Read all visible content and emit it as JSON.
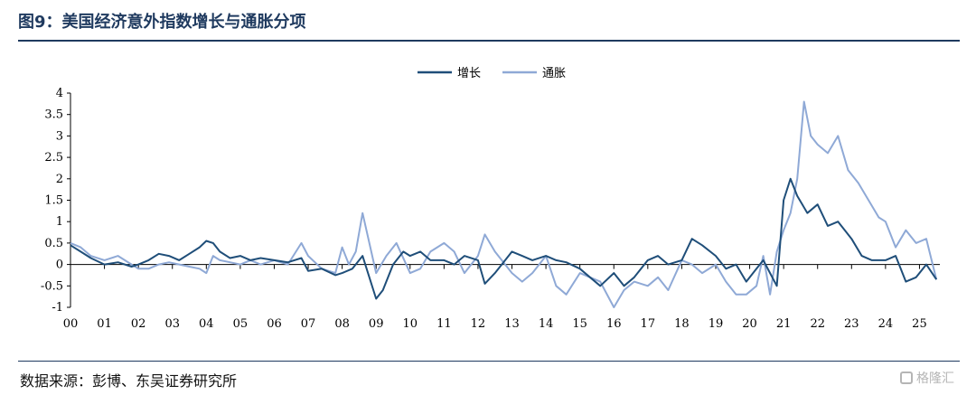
{
  "title": "图9：美国经济意外指数增长与通胀分项",
  "source": "数据来源：彭博、东吴证券研究所",
  "watermark": "格隆汇",
  "chart_data": {
    "type": "line",
    "xlabel": "",
    "ylabel": "",
    "ylim": [
      -1,
      4
    ],
    "yticks": [
      -1,
      -0.5,
      0,
      0.5,
      1,
      1.5,
      2,
      2.5,
      3,
      3.5,
      4
    ],
    "ytick_labels": [
      "-1",
      "-0.5",
      "0",
      "0.5",
      "1",
      "1.5",
      "2",
      "2.5",
      "3",
      "3.5",
      "4"
    ],
    "xlim": [
      2000,
      2025.6
    ],
    "xticks": [
      2000,
      2001,
      2002,
      2003,
      2004,
      2005,
      2006,
      2007,
      2008,
      2009,
      2010,
      2011,
      2012,
      2013,
      2014,
      2015,
      2016,
      2017,
      2018,
      2019,
      2020,
      2021,
      2022,
      2023,
      2024,
      2025
    ],
    "xtick_labels": [
      "00",
      "01",
      "02",
      "03",
      "04",
      "05",
      "06",
      "07",
      "08",
      "09",
      "10",
      "11",
      "12",
      "13",
      "14",
      "15",
      "16",
      "17",
      "18",
      "19",
      "20",
      "21",
      "22",
      "23",
      "24",
      "25"
    ],
    "legend": "top-center",
    "series": [
      {
        "name": "增长",
        "color": "#1f4e79",
        "x": [
          2000.0,
          2000.3,
          2000.6,
          2001.0,
          2001.4,
          2001.8,
          2002.0,
          2002.3,
          2002.6,
          2002.9,
          2003.2,
          2003.5,
          2003.8,
          2004.0,
          2004.2,
          2004.4,
          2004.7,
          2005.0,
          2005.3,
          2005.6,
          2006.0,
          2006.4,
          2006.8,
          2007.0,
          2007.4,
          2007.8,
          2008.0,
          2008.3,
          2008.6,
          2008.8,
          2009.0,
          2009.2,
          2009.5,
          2009.8,
          2010.0,
          2010.3,
          2010.6,
          2011.0,
          2011.3,
          2011.6,
          2012.0,
          2012.2,
          2012.5,
          2012.8,
          2013.0,
          2013.3,
          2013.6,
          2014.0,
          2014.3,
          2014.6,
          2015.0,
          2015.3,
          2015.6,
          2016.0,
          2016.3,
          2016.6,
          2017.0,
          2017.3,
          2017.6,
          2018.0,
          2018.3,
          2018.6,
          2019.0,
          2019.3,
          2019.6,
          2019.9,
          2020.2,
          2020.4,
          2020.6,
          2020.8,
          2021.0,
          2021.2,
          2021.4,
          2021.7,
          2022.0,
          2022.3,
          2022.6,
          2023.0,
          2023.3,
          2023.6,
          2024.0,
          2024.3,
          2024.6,
          2024.9,
          2025.2,
          2025.5
        ],
        "values": [
          0.45,
          0.3,
          0.15,
          0.0,
          0.05,
          -0.05,
          0.0,
          0.1,
          0.25,
          0.2,
          0.1,
          0.25,
          0.4,
          0.55,
          0.5,
          0.3,
          0.15,
          0.2,
          0.1,
          0.15,
          0.1,
          0.05,
          0.15,
          -0.15,
          -0.1,
          -0.25,
          -0.2,
          -0.1,
          0.2,
          -0.3,
          -0.8,
          -0.6,
          0.0,
          0.3,
          0.2,
          0.3,
          0.1,
          0.1,
          0.0,
          0.2,
          0.1,
          -0.45,
          -0.2,
          0.1,
          0.3,
          0.2,
          0.1,
          0.2,
          0.1,
          0.05,
          -0.1,
          -0.3,
          -0.5,
          -0.2,
          -0.5,
          -0.3,
          0.1,
          0.2,
          0.0,
          0.1,
          0.6,
          0.45,
          0.2,
          -0.1,
          0.0,
          -0.4,
          -0.1,
          0.1,
          -0.2,
          -0.5,
          1.5,
          2.0,
          1.6,
          1.2,
          1.4,
          0.9,
          1.0,
          0.6,
          0.2,
          0.1,
          0.1,
          0.2,
          -0.4,
          -0.3,
          0.0,
          -0.35
        ]
      },
      {
        "name": "通胀",
        "color": "#8fa9d6",
        "x": [
          2000.0,
          2000.3,
          2000.6,
          2001.0,
          2001.4,
          2001.8,
          2002.0,
          2002.3,
          2002.6,
          2002.9,
          2003.2,
          2003.5,
          2003.8,
          2004.0,
          2004.2,
          2004.4,
          2004.7,
          2005.0,
          2005.3,
          2005.6,
          2006.0,
          2006.4,
          2006.8,
          2007.0,
          2007.4,
          2007.8,
          2008.0,
          2008.2,
          2008.4,
          2008.6,
          2008.8,
          2009.0,
          2009.3,
          2009.6,
          2010.0,
          2010.3,
          2010.6,
          2011.0,
          2011.3,
          2011.6,
          2012.0,
          2012.2,
          2012.5,
          2012.8,
          2013.0,
          2013.3,
          2013.6,
          2014.0,
          2014.3,
          2014.6,
          2015.0,
          2015.3,
          2015.6,
          2016.0,
          2016.3,
          2016.6,
          2017.0,
          2017.3,
          2017.6,
          2018.0,
          2018.3,
          2018.6,
          2019.0,
          2019.3,
          2019.6,
          2019.9,
          2020.2,
          2020.4,
          2020.6,
          2020.8,
          2021.0,
          2021.2,
          2021.4,
          2021.6,
          2021.8,
          2022.0,
          2022.3,
          2022.6,
          2022.9,
          2023.2,
          2023.5,
          2023.8,
          2024.0,
          2024.3,
          2024.6,
          2024.9,
          2025.2,
          2025.5
        ],
        "values": [
          0.5,
          0.4,
          0.2,
          0.1,
          0.2,
          0.0,
          -0.1,
          -0.1,
          0.0,
          0.05,
          0.0,
          -0.05,
          -0.1,
          -0.2,
          0.2,
          0.1,
          0.05,
          0.0,
          0.1,
          0.0,
          0.1,
          0.0,
          0.5,
          0.2,
          -0.1,
          -0.2,
          0.4,
          0.0,
          0.3,
          1.2,
          0.5,
          -0.2,
          0.2,
          0.5,
          -0.2,
          -0.1,
          0.3,
          0.5,
          0.3,
          -0.2,
          0.2,
          0.7,
          0.3,
          0.0,
          -0.2,
          -0.4,
          -0.2,
          0.2,
          -0.5,
          -0.7,
          -0.2,
          -0.3,
          -0.4,
          -1.0,
          -0.6,
          -0.4,
          -0.5,
          -0.3,
          -0.6,
          0.1,
          0.0,
          -0.2,
          0.0,
          -0.4,
          -0.7,
          -0.7,
          -0.5,
          0.2,
          -0.7,
          0.3,
          0.8,
          1.2,
          2.0,
          3.8,
          3.0,
          2.8,
          2.6,
          3.0,
          2.2,
          1.9,
          1.5,
          1.1,
          1.0,
          0.4,
          0.8,
          0.5,
          0.6,
          -0.35
        ]
      }
    ]
  }
}
